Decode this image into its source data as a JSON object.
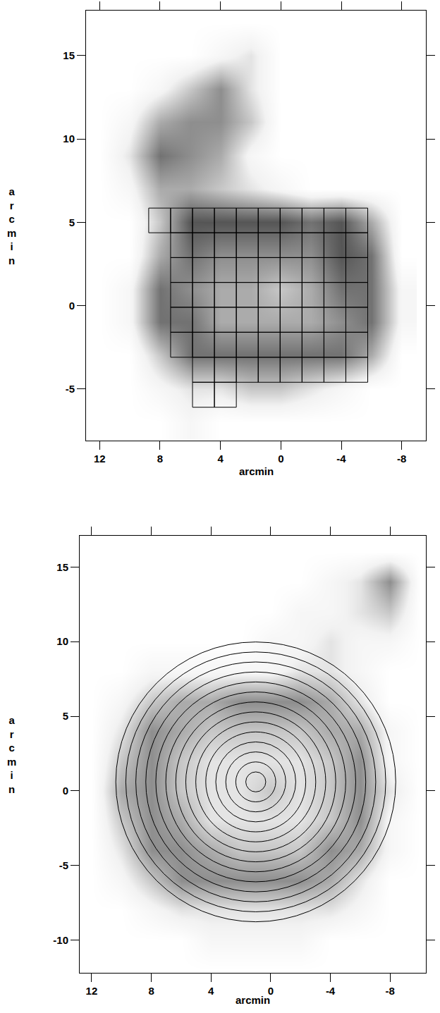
{
  "chart_data": [
    {
      "type": "heatmap",
      "x_label": "arcmin",
      "y_label": "arcmin",
      "xlim": [
        12.9,
        -9.6
      ],
      "ylim": [
        -8.1,
        17.7
      ],
      "xticks": [
        12,
        8,
        4,
        0,
        -4,
        -8
      ],
      "yticks": [
        -5,
        0,
        5,
        10,
        15
      ],
      "x": [
        12,
        10,
        8,
        6,
        4,
        2,
        0,
        -2,
        -4,
        -6,
        -8
      ],
      "y": [
        17,
        15,
        13,
        11,
        9,
        7,
        5,
        3,
        1,
        -1,
        -3,
        -5,
        -7
      ],
      "z": [
        [
          0,
          0,
          0,
          0,
          0,
          0,
          0,
          0,
          0,
          0,
          0
        ],
        [
          0,
          0,
          0,
          0,
          1,
          2,
          0,
          0,
          0,
          0,
          0
        ],
        [
          0,
          0,
          1,
          3,
          5,
          2,
          0,
          0,
          0,
          0,
          0
        ],
        [
          0,
          1,
          4,
          5,
          5,
          3,
          0,
          0,
          0,
          0,
          0
        ],
        [
          0,
          2,
          6,
          5,
          4,
          1,
          0,
          0,
          0,
          0,
          0
        ],
        [
          0,
          1,
          4,
          4,
          3,
          2,
          1,
          0,
          0,
          0,
          0
        ],
        [
          0,
          0,
          3,
          7,
          7,
          7,
          7,
          6,
          7,
          4,
          0
        ],
        [
          0,
          0,
          4,
          6,
          5,
          5,
          5,
          5,
          7,
          6,
          0
        ],
        [
          0,
          1,
          6,
          5,
          4,
          4,
          3,
          4,
          6,
          6,
          1
        ],
        [
          0,
          1,
          6,
          6,
          4,
          4,
          4,
          4,
          5,
          6,
          1
        ],
        [
          0,
          0,
          3,
          6,
          6,
          6,
          6,
          6,
          6,
          4,
          0
        ],
        [
          0,
          0,
          1,
          2,
          2,
          3,
          3,
          2,
          1,
          0,
          0
        ],
        [
          0,
          0,
          0,
          1,
          0,
          0,
          0,
          0,
          0,
          0,
          0
        ]
      ],
      "zlim": [
        0,
        10
      ],
      "color": "#000000",
      "boxes": [
        {
          "x_edges": [
            8.75,
            7.3,
            5.85,
            4.4,
            2.95,
            1.5,
            0.05,
            -1.4,
            -2.85,
            -4.3,
            -5.75
          ],
          "y": [
            5.85,
            4.37
          ]
        },
        {
          "x_edges": [
            7.3,
            5.85,
            4.4,
            2.95,
            1.5,
            0.05,
            -1.4,
            -2.85,
            -4.3,
            -5.75
          ],
          "y": [
            4.37,
            2.88
          ]
        },
        {
          "x_edges": [
            7.3,
            5.85,
            4.4,
            2.95,
            1.5,
            0.05,
            -1.4,
            -2.85,
            -4.3,
            -5.75
          ],
          "y": [
            2.88,
            1.39
          ]
        },
        {
          "x_edges": [
            7.3,
            5.85,
            4.4,
            2.95,
            1.5,
            0.05,
            -1.4,
            -2.85,
            -4.3,
            -5.75
          ],
          "y": [
            1.39,
            -0.1
          ]
        },
        {
          "x_edges": [
            7.3,
            5.85,
            4.4,
            2.95,
            1.5,
            0.05,
            -1.4,
            -2.85,
            -4.3,
            -5.75
          ],
          "y": [
            -0.1,
            -1.6
          ]
        },
        {
          "x_edges": [
            7.3,
            5.85,
            4.4,
            2.95,
            1.5,
            0.05,
            -1.4,
            -2.85,
            -4.3,
            -5.75
          ],
          "y": [
            -1.6,
            -3.1
          ]
        },
        {
          "x_edges": [
            5.85,
            4.4,
            2.95,
            1.5,
            0.05,
            -1.4,
            -2.85,
            -4.3,
            -5.75
          ],
          "y": [
            -3.1,
            -4.6
          ]
        },
        {
          "x_edges": [
            5.85,
            4.4,
            2.95
          ],
          "y": [
            -4.6,
            -6.1
          ]
        }
      ]
    },
    {
      "type": "heatmap",
      "x_label": "arcmin",
      "y_label": "arcmin",
      "xlim": [
        12.8,
        -10.4
      ],
      "ylim": [
        -12.2,
        17.1
      ],
      "xticks": [
        12,
        8,
        4,
        0,
        -4,
        -8
      ],
      "yticks": [
        -10,
        -5,
        0,
        5,
        10,
        15
      ],
      "x": [
        12,
        10,
        8,
        6,
        4,
        2,
        0,
        -2,
        -4,
        -6,
        -8,
        -10
      ],
      "y": [
        16,
        14,
        12,
        10,
        8,
        6,
        4,
        2,
        0,
        -2,
        -4,
        -6,
        -8,
        -10,
        -12
      ],
      "z": [
        [
          0,
          0,
          0,
          0,
          0,
          0,
          0,
          0,
          0,
          0,
          0,
          0
        ],
        [
          0,
          0,
          0,
          0,
          0,
          0,
          0,
          0,
          1,
          2,
          5,
          0
        ],
        [
          0,
          0,
          0,
          0,
          0,
          0,
          0,
          1,
          1,
          2,
          3,
          0
        ],
        [
          0,
          0,
          0,
          0,
          0,
          0,
          1,
          1,
          2,
          1,
          1,
          0
        ],
        [
          0,
          0,
          1,
          1,
          1,
          1,
          1,
          2,
          2,
          1,
          0,
          0
        ],
        [
          0,
          1,
          3,
          4,
          4,
          5,
          5,
          5,
          4,
          2,
          0,
          0
        ],
        [
          0,
          2,
          5,
          4,
          3,
          3,
          3,
          3,
          4,
          4,
          1,
          0
        ],
        [
          0,
          3,
          5,
          3,
          2,
          2,
          2,
          2,
          3,
          5,
          1,
          0
        ],
        [
          0,
          4,
          5,
          3,
          2,
          2,
          3,
          2,
          3,
          5,
          2,
          0
        ],
        [
          0,
          3,
          5,
          4,
          2,
          2,
          2,
          2,
          3,
          5,
          1,
          0
        ],
        [
          0,
          2,
          5,
          5,
          4,
          3,
          3,
          3,
          5,
          4,
          1,
          0
        ],
        [
          0,
          1,
          3,
          5,
          5,
          5,
          5,
          5,
          4,
          2,
          0,
          0
        ],
        [
          0,
          0,
          1,
          2,
          2,
          2,
          2,
          2,
          2,
          1,
          0,
          0
        ],
        [
          0,
          0,
          0,
          0,
          1,
          1,
          1,
          1,
          0,
          0,
          0,
          0
        ],
        [
          0,
          0,
          0,
          0,
          0,
          0,
          0,
          0,
          0,
          0,
          0,
          0
        ]
      ],
      "zlim": [
        0,
        10
      ],
      "color": "#000000",
      "circles": {
        "center": [
          1.0,
          0.6
        ],
        "radii": [
          0.67,
          1.34,
          2.01,
          2.68,
          3.35,
          4.02,
          4.69,
          5.36,
          6.03,
          6.7,
          7.37,
          8.04,
          8.71,
          9.38
        ]
      }
    }
  ]
}
